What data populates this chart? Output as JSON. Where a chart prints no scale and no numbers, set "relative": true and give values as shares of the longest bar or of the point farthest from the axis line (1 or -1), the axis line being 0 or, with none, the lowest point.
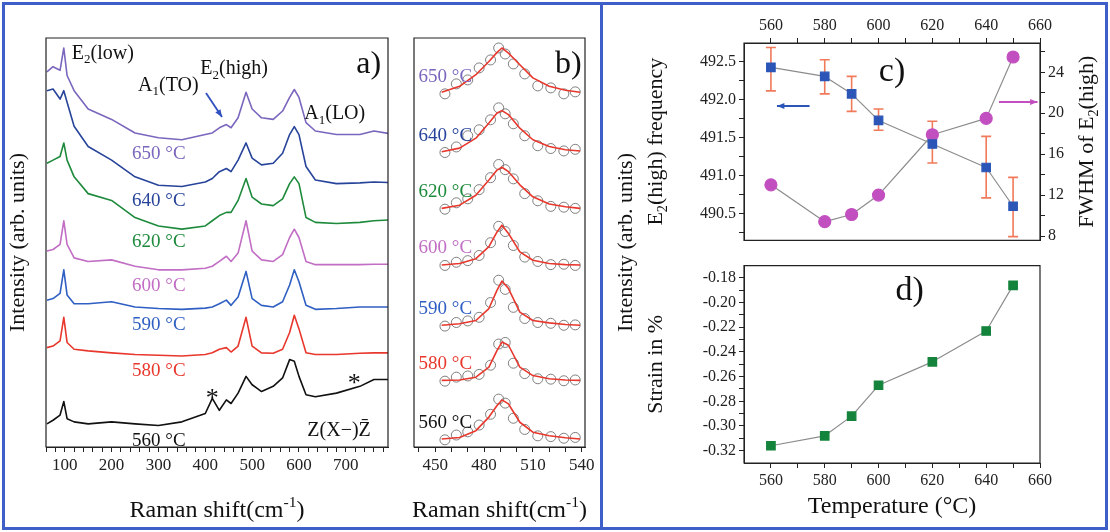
{
  "chart_data": [
    {
      "type": "line",
      "relative": true,
      "xlabel": "Raman shift(cm$^{-1}$)",
      "ylabel": "Intensity (arb. units)",
      "marker": "none",
      "tick_labels": "x",
      "xlim": [
        60,
        790
      ],
      "xticks": [
        {
          "value": 60,
          "label": null
        },
        {
          "value": 80,
          "label": null
        },
        100,
        {
          "value": 120,
          "label": null
        },
        {
          "value": 140,
          "label": null
        },
        {
          "value": 160,
          "label": null
        },
        {
          "value": 180,
          "label": null
        },
        200,
        {
          "value": 220,
          "label": null
        },
        {
          "value": 240,
          "label": null
        },
        {
          "value": 260,
          "label": null
        },
        {
          "value": 280,
          "label": null
        },
        300,
        {
          "value": 320,
          "label": null
        },
        {
          "value": 340,
          "label": null
        },
        {
          "value": 360,
          "label": null
        },
        {
          "value": 380,
          "label": null
        },
        400,
        {
          "value": 420,
          "label": null
        },
        {
          "value": 440,
          "label": null
        },
        {
          "value": 460,
          "label": null
        },
        {
          "value": 480,
          "label": null
        },
        500,
        {
          "value": 520,
          "label": null
        },
        {
          "value": 540,
          "label": null
        },
        {
          "value": 560,
          "label": null
        },
        {
          "value": 580,
          "label": null
        },
        600,
        {
          "value": 620,
          "label": null
        },
        {
          "value": 640,
          "label": null
        },
        {
          "value": 660,
          "label": null
        },
        {
          "value": 680,
          "label": null
        },
        700,
        {
          "value": 720,
          "label": null
        },
        {
          "value": 740,
          "label": null
        },
        {
          "value": 760,
          "label": null
        },
        {
          "value": 780,
          "label": null
        }
      ],
      "x": [
        62,
        75,
        90,
        98,
        105,
        120,
        150,
        200,
        250,
        300,
        350,
        400,
        415,
        430,
        445,
        455,
        470,
        487,
        500,
        520,
        545,
        565,
        580,
        590,
        600,
        615,
        635,
        680,
        730,
        760,
        790
      ],
      "series": [
        {
          "name": "650 °C",
          "color": "#7b66bd",
          "values": [
            0.94,
            0.953,
            0.944,
            1.0,
            0.931,
            0.893,
            0.847,
            0.821,
            0.787,
            0.775,
            0.77,
            0.783,
            0.787,
            0.8,
            0.808,
            0.8,
            0.825,
            0.889,
            0.847,
            0.825,
            0.821,
            0.842,
            0.876,
            0.896,
            0.876,
            0.813,
            0.792,
            0.783,
            0.783,
            0.792,
            0.786
          ]
        },
        {
          "name": "640 °C",
          "color": "#27449a",
          "values": [
            0.893,
            0.897,
            0.872,
            0.893,
            0.864,
            0.804,
            0.753,
            0.719,
            0.677,
            0.656,
            0.653,
            0.664,
            0.673,
            0.69,
            0.698,
            0.69,
            0.719,
            0.762,
            0.724,
            0.707,
            0.711,
            0.736,
            0.783,
            0.803,
            0.783,
            0.703,
            0.669,
            0.66,
            0.662,
            0.664,
            0.663
          ]
        },
        {
          "name": "620 °C",
          "color": "#1e8a3c",
          "values": [
            0.711,
            0.719,
            0.728,
            0.762,
            0.719,
            0.677,
            0.635,
            0.618,
            0.575,
            0.554,
            0.546,
            0.554,
            0.567,
            0.58,
            0.588,
            0.588,
            0.618,
            0.673,
            0.626,
            0.609,
            0.605,
            0.622,
            0.66,
            0.677,
            0.66,
            0.575,
            0.563,
            0.56,
            0.563,
            0.567,
            0.569
          ]
        },
        {
          "name": "600 °C",
          "color": "#c16ec4",
          "values": [
            0.491,
            0.495,
            0.508,
            0.567,
            0.508,
            0.474,
            0.465,
            0.469,
            0.453,
            0.444,
            0.444,
            0.448,
            0.453,
            0.465,
            0.478,
            0.465,
            0.486,
            0.567,
            0.491,
            0.469,
            0.465,
            0.482,
            0.525,
            0.546,
            0.525,
            0.465,
            0.457,
            0.457,
            0.457,
            0.458,
            0.458
          ]
        },
        {
          "name": "590 °C",
          "color": "#2f5fc2",
          "values": [
            0.368,
            0.372,
            0.385,
            0.444,
            0.381,
            0.359,
            0.359,
            0.364,
            0.351,
            0.347,
            0.345,
            0.348,
            0.351,
            0.359,
            0.368,
            0.355,
            0.376,
            0.44,
            0.372,
            0.355,
            0.351,
            0.364,
            0.406,
            0.444,
            0.414,
            0.355,
            0.345,
            0.347,
            0.351,
            0.351,
            0.351
          ]
        },
        {
          "name": "580 °C",
          "color": "#e8372c",
          "values": [
            0.249,
            0.253,
            0.266,
            0.325,
            0.262,
            0.245,
            0.241,
            0.236,
            0.232,
            0.23,
            0.228,
            0.232,
            0.236,
            0.245,
            0.249,
            0.238,
            0.253,
            0.325,
            0.253,
            0.236,
            0.235,
            0.245,
            0.287,
            0.33,
            0.296,
            0.236,
            0.232,
            0.232,
            0.235,
            0.236,
            0.236
          ]
        },
        {
          "name": "560 °C",
          "color": "#111111",
          "values": [
            0.058,
            0.067,
            0.08,
            0.114,
            0.071,
            0.063,
            0.058,
            0.063,
            0.058,
            0.054,
            0.063,
            0.084,
            0.122,
            0.092,
            0.118,
            0.109,
            0.135,
            0.177,
            0.156,
            0.139,
            0.152,
            0.173,
            0.219,
            0.215,
            0.177,
            0.131,
            0.126,
            0.135,
            0.152,
            0.169,
            0.169
          ]
        }
      ],
      "annotations": [
        {
          "text": "E$_{2}$(low)",
          "x": 98,
          "y": 1.0
        },
        {
          "text": "E$_{2}$(high)",
          "x": 487,
          "y": 0.889
        },
        {
          "text": "A$_{1}$(TO)",
          "x": 445,
          "y": 0.808
        },
        {
          "text": "A$_{1}$(LO)",
          "x": 590,
          "y": 0.896
        },
        {
          "text": "*",
          "x": 415,
          "y": 0.122
        },
        {
          "text": "*",
          "x": 718,
          "y": 0.16
        },
        "Z(X−)Z̄",
        "a)"
      ]
    },
    {
      "type": "line",
      "relative": true,
      "xlabel": "Raman shift(cm$^{-1}$)",
      "ylabel": "Intensity (arb. units)",
      "marker": "none",
      "tick_labels": "x",
      "xlim": [
        437,
        542
      ],
      "xticks": [
        {
          "value": 440,
          "label": null
        },
        450,
        {
          "value": 460,
          "label": null
        },
        {
          "value": 470,
          "label": null
        },
        480,
        {
          "value": 490,
          "label": null
        },
        {
          "value": 500,
          "label": null
        },
        510,
        {
          "value": 520,
          "label": null
        },
        {
          "value": 530,
          "label": null
        },
        540
      ],
      "series": [
        {
          "name": "650 °C",
          "type": "scatter",
          "marker": "circle",
          "color": "#808080",
          "x": [
            456,
            463,
            470,
            477,
            484,
            489,
            493,
            498,
            505,
            513,
            521,
            529,
            536
          ],
          "values": [
            0.885,
            0.91,
            0.92,
            0.95,
            0.97,
            1.0,
            0.985,
            0.96,
            0.935,
            0.905,
            0.9,
            0.885,
            0.89
          ]
        },
        {
          "name": "640 °C",
          "type": "scatter",
          "marker": "circle",
          "color": "#808080",
          "x": [
            456,
            463,
            470,
            477,
            484,
            489,
            493,
            498,
            505,
            513,
            521,
            529,
            536
          ],
          "values": [
            0.738,
            0.752,
            0.78,
            0.795,
            0.82,
            0.85,
            0.835,
            0.81,
            0.78,
            0.755,
            0.748,
            0.742,
            0.746
          ]
        },
        {
          "name": "620 °C",
          "type": "scatter",
          "marker": "circle",
          "color": "#808080",
          "x": [
            456,
            463,
            470,
            477,
            484,
            489,
            493,
            498,
            505,
            513,
            521,
            529,
            536
          ],
          "values": [
            0.596,
            0.612,
            0.622,
            0.645,
            0.675,
            0.708,
            0.695,
            0.672,
            0.635,
            0.617,
            0.603,
            0.601,
            0.598
          ]
        },
        {
          "name": "600 °C",
          "type": "scatter",
          "marker": "circle",
          "color": "#808080",
          "x": [
            456,
            463,
            470,
            477,
            484,
            489,
            493,
            498,
            505,
            513,
            521,
            529,
            536
          ],
          "values": [
            0.455,
            0.463,
            0.467,
            0.48,
            0.512,
            0.553,
            0.54,
            0.505,
            0.476,
            0.465,
            0.457,
            0.458,
            0.455
          ]
        },
        {
          "name": "590 °C",
          "type": "scatter",
          "marker": "circle",
          "color": "#808080",
          "x": [
            456,
            463,
            470,
            477,
            484,
            489,
            493,
            498,
            505,
            513,
            521,
            529,
            536
          ],
          "values": [
            0.303,
            0.312,
            0.316,
            0.325,
            0.362,
            0.418,
            0.395,
            0.35,
            0.322,
            0.312,
            0.31,
            0.305,
            0.306
          ]
        },
        {
          "name": "580 °C",
          "type": "scatter",
          "marker": "circle",
          "color": "#808080",
          "x": [
            456,
            463,
            470,
            477,
            484,
            489,
            493,
            498,
            505,
            513,
            521,
            529,
            536
          ],
          "values": [
            0.165,
            0.175,
            0.178,
            0.182,
            0.205,
            0.258,
            0.262,
            0.21,
            0.184,
            0.171,
            0.17,
            0.166,
            0.168
          ]
        },
        {
          "name": "560 °C",
          "type": "scatter",
          "marker": "circle",
          "color": "#808080",
          "x": [
            456,
            463,
            470,
            477,
            484,
            489,
            493,
            498,
            505,
            513,
            521,
            529,
            536
          ],
          "values": [
            0.018,
            0.03,
            0.038,
            0.055,
            0.082,
            0.12,
            0.11,
            0.072,
            0.044,
            0.028,
            0.026,
            0.022,
            0.024
          ]
        },
        {
          "color": "#e8372c",
          "x": [
            454,
            465,
            475,
            483,
            488,
            491,
            495,
            502,
            510,
            520,
            530,
            539
          ],
          "values": [
            0.889,
            0.904,
            0.933,
            0.966,
            0.989,
            1.0,
            0.987,
            0.958,
            0.925,
            0.904,
            0.894,
            0.889
          ]
        },
        {
          "color": "#e8372c",
          "x": [
            454,
            465,
            475,
            483,
            488,
            491,
            495,
            502,
            510,
            520,
            530,
            539
          ],
          "values": [
            0.74,
            0.749,
            0.774,
            0.812,
            0.837,
            0.843,
            0.833,
            0.799,
            0.77,
            0.753,
            0.745,
            0.742
          ]
        },
        {
          "color": "#e8372c",
          "x": [
            454,
            465,
            475,
            483,
            488,
            491,
            495,
            502,
            510,
            520,
            530,
            539
          ],
          "values": [
            0.598,
            0.606,
            0.631,
            0.669,
            0.694,
            0.701,
            0.69,
            0.657,
            0.627,
            0.609,
            0.602,
            0.598
          ]
        },
        {
          "color": "#e8372c",
          "x": [
            454,
            465,
            475,
            483,
            488,
            491,
            495,
            502,
            510,
            520,
            530,
            539
          ],
          "values": [
            0.456,
            0.46,
            0.472,
            0.502,
            0.539,
            0.556,
            0.535,
            0.489,
            0.468,
            0.46,
            0.457,
            0.456
          ]
        },
        {
          "color": "#e8372c",
          "x": [
            454,
            465,
            475,
            483,
            488,
            491,
            495,
            502,
            510,
            520,
            530,
            539
          ],
          "values": [
            0.305,
            0.309,
            0.317,
            0.347,
            0.393,
            0.416,
            0.397,
            0.338,
            0.317,
            0.311,
            0.307,
            0.305
          ]
        },
        {
          "color": "#e8372c",
          "x": [
            454,
            465,
            475,
            483,
            488,
            491,
            495,
            502,
            510,
            520,
            530,
            539
          ],
          "values": [
            0.167,
            0.168,
            0.175,
            0.2,
            0.242,
            0.263,
            0.255,
            0.2,
            0.179,
            0.171,
            0.168,
            0.167
          ]
        },
        {
          "color": "#e8372c",
          "x": [
            454,
            465,
            475,
            483,
            488,
            491,
            495,
            502,
            510,
            520,
            530,
            539
          ],
          "values": [
            0.02,
            0.024,
            0.041,
            0.075,
            0.104,
            0.118,
            0.108,
            0.062,
            0.037,
            0.028,
            0.023,
            0.02
          ]
        }
      ],
      "annotations": [
        "b)"
      ]
    },
    {
      "type": "line",
      "ylabel": "E$_{2}$(high) frequency",
      "y2label": "FWHM of E$_{2}$(high)",
      "x": [
        560,
        580,
        590,
        600,
        620,
        640,
        650
      ],
      "xlim": [
        550,
        660
      ],
      "xticks": [
        560,
        {
          "value": 570,
          "label": null
        },
        580,
        {
          "value": 590,
          "label": null
        },
        600,
        {
          "value": 610,
          "label": null
        },
        620,
        {
          "value": 630,
          "label": null
        },
        640,
        {
          "value": 650,
          "label": null
        },
        660
      ],
      "ylim": [
        490.15,
        492.75
      ],
      "yticks": [
        {
          "value": 490.25,
          "label": null
        },
        490.5,
        {
          "value": 490.75,
          "label": null
        },
        {
          "value": 491,
          "label": "491.0"
        },
        {
          "value": 491.25,
          "label": null
        },
        491.5,
        {
          "value": 491.75,
          "label": null
        },
        {
          "value": 492,
          "label": "492.0"
        },
        {
          "value": 492.25,
          "label": null
        },
        492.5
      ],
      "y2lim": [
        7.57,
        26.87
      ],
      "y2ticks": [
        8,
        {
          "value": 10,
          "label": null
        },
        12,
        {
          "value": 14,
          "label": null
        },
        16,
        {
          "value": 18,
          "label": null
        },
        20,
        {
          "value": 22,
          "label": null
        },
        24,
        {
          "value": 26,
          "label": null
        }
      ],
      "series": [
        {
          "color": "#2b56b8",
          "marker": "square",
          "values": [
            492.43,
            492.31,
            492.08,
            491.73,
            491.42,
            491.11,
            490.6
          ],
          "errors": [
            [
              492.12,
              492.69
            ],
            [
              492.08,
              492.53
            ],
            [
              491.85,
              492.31
            ],
            [
              491.6,
              491.88
            ],
            [
              491.17,
              491.72
            ],
            [
              490.71,
              491.52
            ],
            [
              490.2,
              490.98
            ]
          ]
        },
        {
          "color": "#c24fc0",
          "marker": "circle",
          "axis": "y2",
          "values": [
            13.0,
            9.4,
            10.1,
            12.0,
            17.9,
            19.5,
            25.5
          ]
        }
      ],
      "annotations": [
        "c)"
      ]
    },
    {
      "type": "line",
      "xlabel": "Temperature (°C)",
      "ylabel": "Strain in %",
      "marker": "square",
      "x": [
        560,
        580,
        590,
        600,
        620,
        640,
        650
      ],
      "xlim": [
        550,
        660
      ],
      "xticks": [
        560,
        {
          "value": 570,
          "label": null
        },
        580,
        {
          "value": 590,
          "label": null
        },
        600,
        {
          "value": 610,
          "label": null
        },
        620,
        {
          "value": 630,
          "label": null
        },
        640,
        {
          "value": 650,
          "label": null
        },
        660
      ],
      "ylim": [
        -0.33,
        -0.17
      ],
      "yticks": [
        {
          "value": -0.32,
          "label": "-0.32"
        },
        {
          "value": -0.31,
          "label": null
        },
        {
          "value": -0.3,
          "label": "-0.30"
        },
        {
          "value": -0.29,
          "label": null
        },
        {
          "value": -0.28,
          "label": "-0.28"
        },
        {
          "value": -0.27,
          "label": null
        },
        {
          "value": -0.26,
          "label": "-0.26"
        },
        {
          "value": -0.25,
          "label": null
        },
        {
          "value": -0.24,
          "label": "-0.24"
        },
        {
          "value": -0.23,
          "label": null
        },
        {
          "value": -0.22,
          "label": "-0.22"
        },
        {
          "value": -0.21,
          "label": null
        },
        {
          "value": -0.2,
          "label": "-0.20"
        },
        {
          "value": -0.19,
          "label": null
        },
        {
          "value": -0.18,
          "label": "-0.18"
        }
      ],
      "series": [
        {
          "color": "#14843c",
          "values": [
            -0.316,
            -0.308,
            -0.292,
            -0.267,
            -0.248,
            -0.223,
            -0.186
          ]
        }
      ],
      "annotations": [
        "d)"
      ]
    }
  ]
}
